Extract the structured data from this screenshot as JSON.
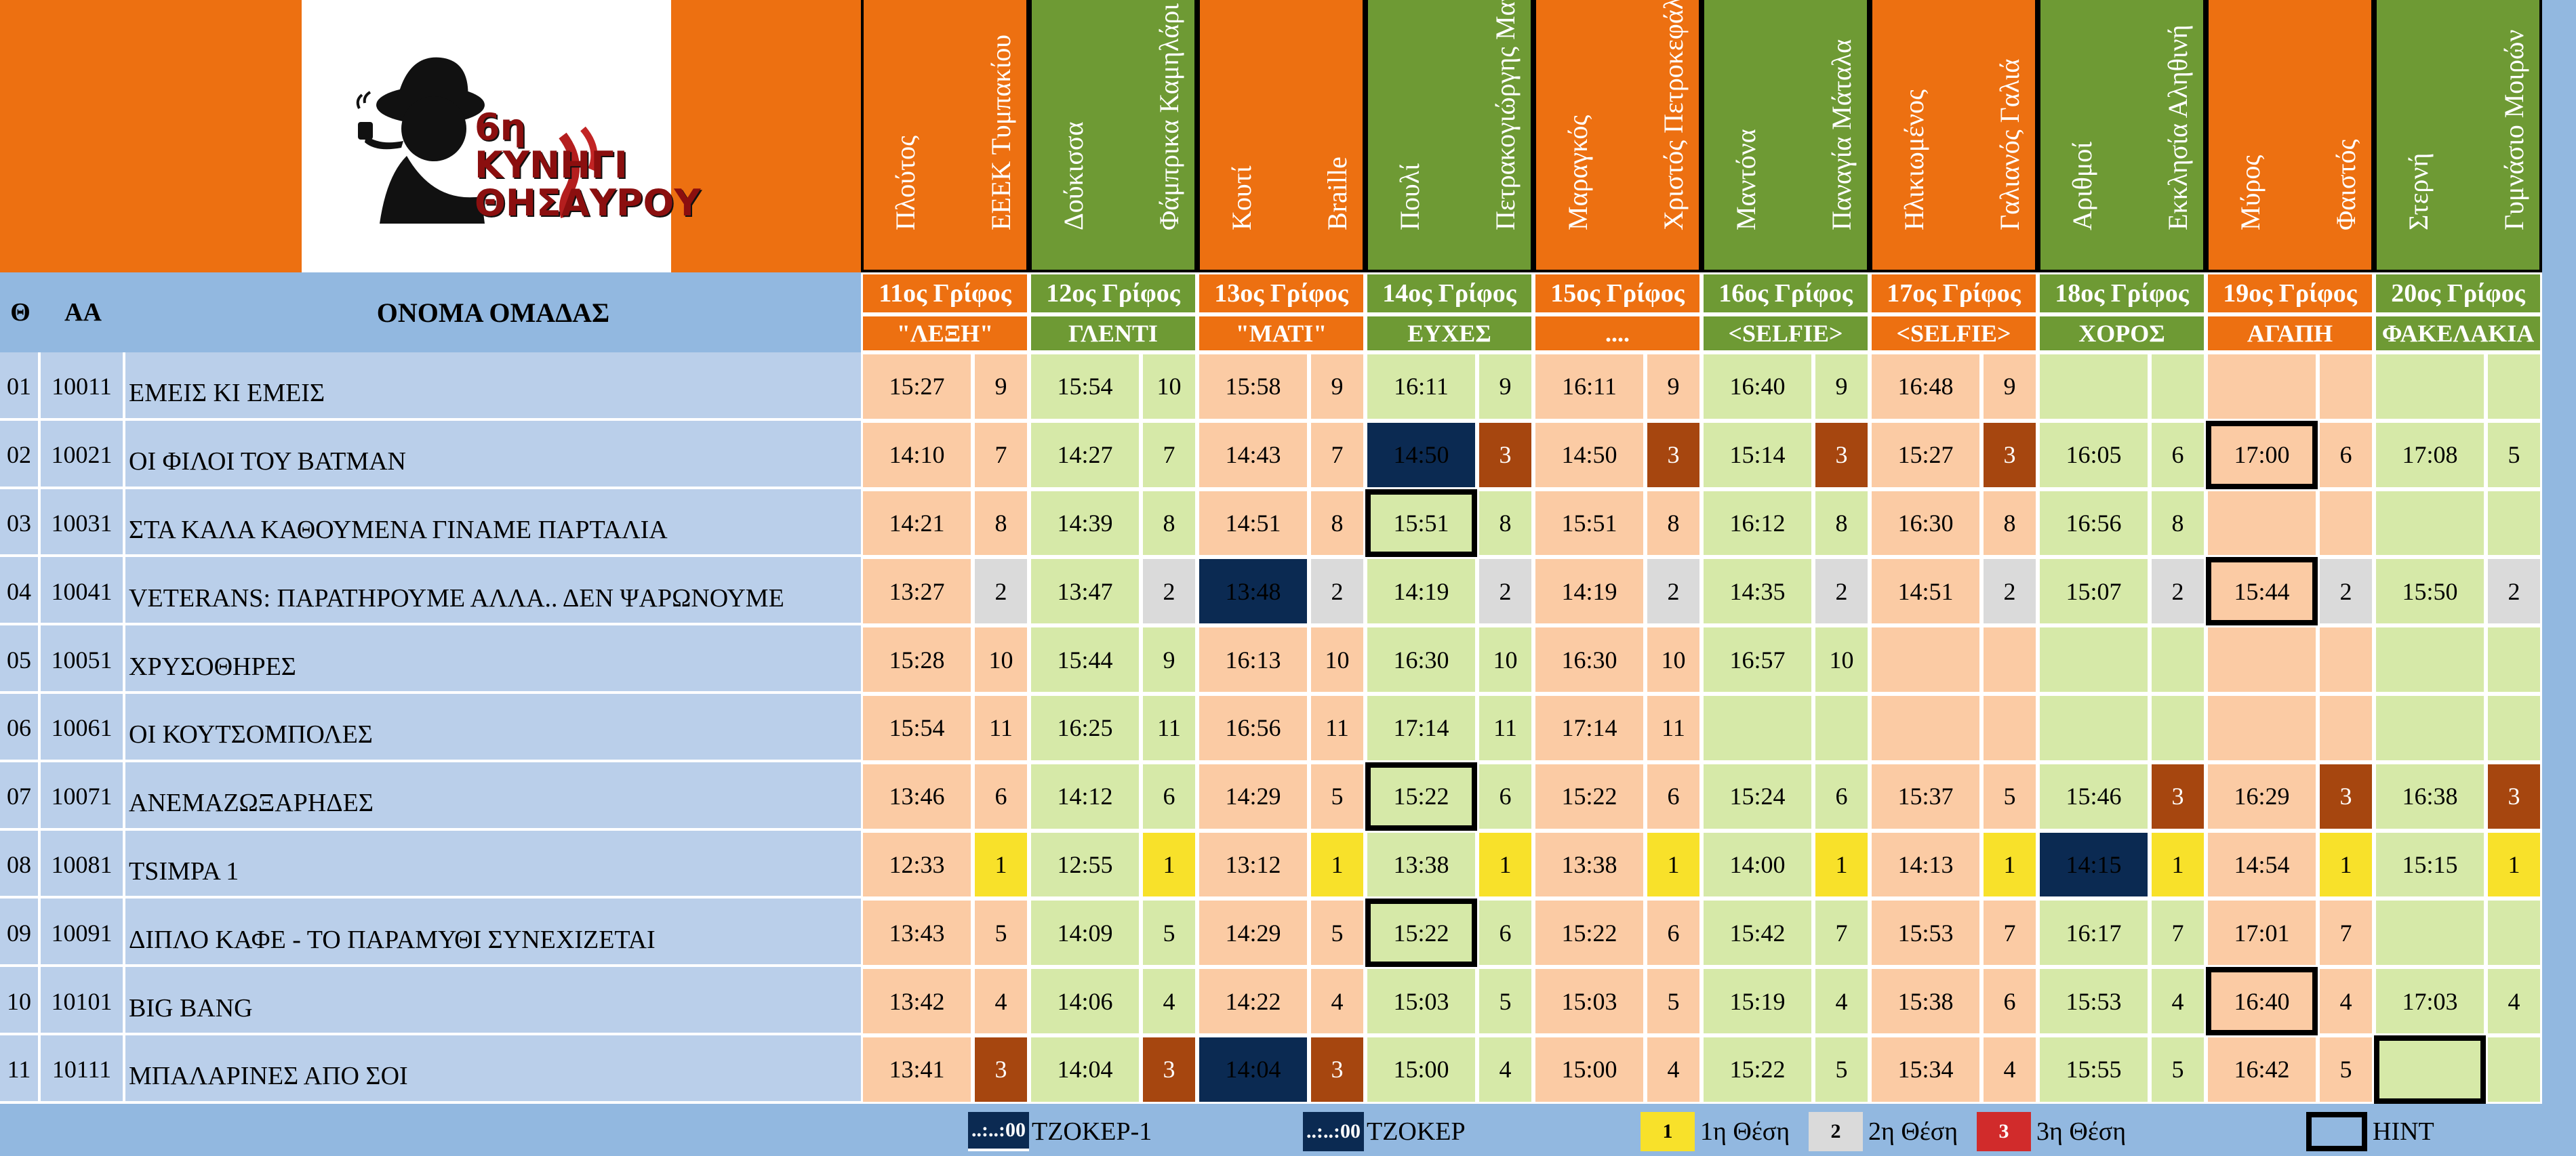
{
  "colors": {
    "orange": "#ED7011",
    "green": "#6E9A34",
    "blue_header": "#92B8E0",
    "blue_row": "#BACFEA",
    "peach": "#FBCBA4",
    "light_green": "#D6E9A8",
    "rank1": "#F8E12A",
    "rank2": "#DADADA",
    "rank3": "#A6460F",
    "navy": "#0B2A52",
    "hint_border": "#000000",
    "grid": "#ffffff"
  },
  "header": {
    "logo_text": "6η ΚΥΝΗΓΙ ΘΗΣΑΥΡΟΥ",
    "col_rank": "Θ",
    "col_aa": "ΑΑ",
    "col_team": "ΟΝΟΜΑ ΟΜΑΔΑΣ"
  },
  "riddles": [
    {
      "label": "11ος Γρίφος",
      "answer": "\"ΛΕΞΗ\"",
      "place1": "Πλούτος",
      "place2": "ΕΕΕΚ Τυμπακίου",
      "color": "orange"
    },
    {
      "label": "12ος Γρίφος",
      "answer": "ΓΛΕΝΤΙ",
      "place1": "Δούκισσα",
      "place2": "Φάμπρικα Καμηλάρι",
      "color": "green"
    },
    {
      "label": "13ος Γρίφος",
      "answer": "\"ΜΑΤΙ\"",
      "place1": "Κουτί",
      "place2": "Braille",
      "color": "orange"
    },
    {
      "label": "14ος Γρίφος",
      "answer": "ΕΥΧΕΣ",
      "place1": "Πουλί",
      "place2": "Πετρακογιώργης Μαγαζιάκι",
      "color": "green"
    },
    {
      "label": "15ος Γρίφος",
      "answer": "....",
      "place1": "Μαραγκός",
      "place2": "Χριστός Πετροκεφάλι",
      "color": "orange"
    },
    {
      "label": "16ος Γρίφος",
      "answer": "<SELFIE>",
      "place1": "Μαντόνα",
      "place2": "Παναγία Μάταλα",
      "color": "green"
    },
    {
      "label": "17ος Γρίφος",
      "answer": "<SELFIE>",
      "place1": "Ηλικιωμένος",
      "place2": "Γαλιανός Γαλιά",
      "color": "orange"
    },
    {
      "label": "18ος Γρίφος",
      "answer": "ΧΟΡΟΣ",
      "place1": "Αριθμοί",
      "place2": "Εκκλησία Αληθινή",
      "color": "green"
    },
    {
      "label": "19ος Γρίφος",
      "answer": "ΑΓΑΠΗ",
      "place1": "Μύρος",
      "place2": "Φαιστός",
      "color": "orange"
    },
    {
      "label": "20ος Γρίφος",
      "answer": "ΦΑΚΕΛΑΚΙΑ",
      "place1": "Στερνή",
      "place2": "Γυμνάσιο Μοιρών",
      "color": "green"
    }
  ],
  "teams": [
    {
      "rank": "01",
      "aa": "10011",
      "name": "ΕΜΕΙΣ ΚΙ ΕΜΕΙΣ",
      "cells": [
        [
          "15:27",
          "9"
        ],
        [
          "15:54",
          "10"
        ],
        [
          "15:58",
          "9"
        ],
        [
          "16:11",
          "9"
        ],
        [
          "16:11",
          "9"
        ],
        [
          "16:40",
          "9"
        ],
        [
          "16:48",
          "9"
        ],
        [
          "",
          ""
        ],
        [
          "",
          ""
        ],
        [
          "",
          ""
        ]
      ]
    },
    {
      "rank": "02",
      "aa": "10021",
      "name": "ΟΙ ΦΙΛΟΙ ΤΟΥ BATMAN",
      "cells": [
        [
          "14:10",
          "7"
        ],
        [
          "14:27",
          "7"
        ],
        [
          "14:43",
          "7"
        ],
        [
          "14:50",
          "3"
        ],
        [
          "14:50",
          "3"
        ],
        [
          "15:14",
          "3"
        ],
        [
          "15:27",
          "3"
        ],
        [
          "16:05",
          "6"
        ],
        [
          "17:00",
          "6"
        ],
        [
          "17:08",
          "5"
        ]
      ]
    },
    {
      "rank": "03",
      "aa": "10031",
      "name": "ΣΤΑ ΚΑΛΑ ΚΑΘΟΥΜΕΝΑ ΓΙΝΑΜΕ ΠΑΡΤΑΛΙΑ",
      "cells": [
        [
          "14:21",
          "8"
        ],
        [
          "14:39",
          "8"
        ],
        [
          "14:51",
          "8"
        ],
        [
          "15:51",
          "8"
        ],
        [
          "15:51",
          "8"
        ],
        [
          "16:12",
          "8"
        ],
        [
          "16:30",
          "8"
        ],
        [
          "16:56",
          "8"
        ],
        [
          "",
          ""
        ],
        [
          "",
          ""
        ]
      ]
    },
    {
      "rank": "04",
      "aa": "10041",
      "name": "VETERANS: ΠΑΡΑΤΗΡΟΥΜΕ ΑΛΛΑ.. ΔΕΝ ΨΑΡΩΝΟΥΜΕ",
      "cells": [
        [
          "13:27",
          "2"
        ],
        [
          "13:47",
          "2"
        ],
        [
          "13:48",
          "2"
        ],
        [
          "14:19",
          "2"
        ],
        [
          "14:19",
          "2"
        ],
        [
          "14:35",
          "2"
        ],
        [
          "14:51",
          "2"
        ],
        [
          "15:07",
          "2"
        ],
        [
          "15:44",
          "2"
        ],
        [
          "15:50",
          "2"
        ]
      ]
    },
    {
      "rank": "05",
      "aa": "10051",
      "name": "ΧΡΥΣΟΘΗΡΕΣ",
      "cells": [
        [
          "15:28",
          "10"
        ],
        [
          "15:44",
          "9"
        ],
        [
          "16:13",
          "10"
        ],
        [
          "16:30",
          "10"
        ],
        [
          "16:30",
          "10"
        ],
        [
          "16:57",
          "10"
        ],
        [
          "",
          ""
        ],
        [
          "",
          ""
        ],
        [
          "",
          ""
        ],
        [
          "",
          ""
        ]
      ]
    },
    {
      "rank": "06",
      "aa": "10061",
      "name": "ΟΙ ΚΟΥΤΣΟΜΠΟΛΕΣ",
      "cells": [
        [
          "15:54",
          "11"
        ],
        [
          "16:25",
          "11"
        ],
        [
          "16:56",
          "11"
        ],
        [
          "17:14",
          "11"
        ],
        [
          "17:14",
          "11"
        ],
        [
          "",
          ""
        ],
        [
          "",
          ""
        ],
        [
          "",
          ""
        ],
        [
          "",
          ""
        ],
        [
          "",
          ""
        ]
      ]
    },
    {
      "rank": "07",
      "aa": "10071",
      "name": "ΑΝΕΜΑΖΩΞΑΡΗΔΕΣ",
      "cells": [
        [
          "13:46",
          "6"
        ],
        [
          "14:12",
          "6"
        ],
        [
          "14:29",
          "5"
        ],
        [
          "15:22",
          "6"
        ],
        [
          "15:22",
          "6"
        ],
        [
          "15:24",
          "6"
        ],
        [
          "15:37",
          "5"
        ],
        [
          "15:46",
          "3"
        ],
        [
          "16:29",
          "3"
        ],
        [
          "16:38",
          "3"
        ]
      ]
    },
    {
      "rank": "08",
      "aa": "10081",
      "name": "TSIMPA 1",
      "cells": [
        [
          "12:33",
          "1"
        ],
        [
          "12:55",
          "1"
        ],
        [
          "13:12",
          "1"
        ],
        [
          "13:38",
          "1"
        ],
        [
          "13:38",
          "1"
        ],
        [
          "14:00",
          "1"
        ],
        [
          "14:13",
          "1"
        ],
        [
          "14:15",
          "1"
        ],
        [
          "14:54",
          "1"
        ],
        [
          "15:15",
          "1"
        ]
      ]
    },
    {
      "rank": "09",
      "aa": "10091",
      "name": "ΔΙΠΛΟ ΚΑΦΕ - ΤΟ ΠΑΡΑΜΥΘΙ ΣΥΝΕΧΙΖΕΤΑΙ",
      "cells": [
        [
          "13:43",
          "5"
        ],
        [
          "14:09",
          "5"
        ],
        [
          "14:29",
          "5"
        ],
        [
          "15:22",
          "6"
        ],
        [
          "15:22",
          "6"
        ],
        [
          "15:42",
          "7"
        ],
        [
          "15:53",
          "7"
        ],
        [
          "16:17",
          "7"
        ],
        [
          "17:01",
          "7"
        ],
        [
          "",
          ""
        ]
      ]
    },
    {
      "rank": "10",
      "aa": "10101",
      "name": "BIG BANG",
      "cells": [
        [
          "13:42",
          "4"
        ],
        [
          "14:06",
          "4"
        ],
        [
          "14:22",
          "4"
        ],
        [
          "15:03",
          "5"
        ],
        [
          "15:03",
          "5"
        ],
        [
          "15:19",
          "4"
        ],
        [
          "15:38",
          "6"
        ],
        [
          "15:53",
          "4"
        ],
        [
          "16:40",
          "4"
        ],
        [
          "17:03",
          "4"
        ]
      ]
    },
    {
      "rank": "11",
      "aa": "10111",
      "name": "ΜΠΑΛΑΡΙΝΕΣ ΑΠΟ ΣΟΙ",
      "cells": [
        [
          "13:41",
          "3"
        ],
        [
          "14:04",
          "3"
        ],
        [
          "14:04",
          "3"
        ],
        [
          "15:00",
          "4"
        ],
        [
          "15:00",
          "4"
        ],
        [
          "15:22",
          "5"
        ],
        [
          "15:34",
          "4"
        ],
        [
          "15:55",
          "5"
        ],
        [
          "16:42",
          "5"
        ],
        [
          "",
          ""
        ]
      ]
    }
  ],
  "special": {
    "navy_cells": [
      [
        "02",
        3
      ],
      [
        "04",
        2
      ],
      [
        "08",
        7
      ],
      [
        "11",
        2
      ]
    ],
    "hint_cells": [
      [
        "02",
        8
      ],
      [
        "03",
        3
      ],
      [
        "04",
        8
      ],
      [
        "07",
        3
      ],
      [
        "09",
        3
      ],
      [
        "10",
        8
      ],
      [
        "11",
        9
      ]
    ]
  },
  "legend": {
    "jocker1_sample": "..:..:00",
    "jocker1_label": "ΤΖΟΚΕΡ-1",
    "jocker_sample": "..:..:00",
    "jocker_label": "ΤΖΟΚΕΡ",
    "rank1_num": "1",
    "rank1_label": "1η Θέση",
    "rank2_num": "2",
    "rank2_label": "2η Θέση",
    "rank3_num": "3",
    "rank3_label": "3η Θέση",
    "hint_label": "HINT"
  }
}
